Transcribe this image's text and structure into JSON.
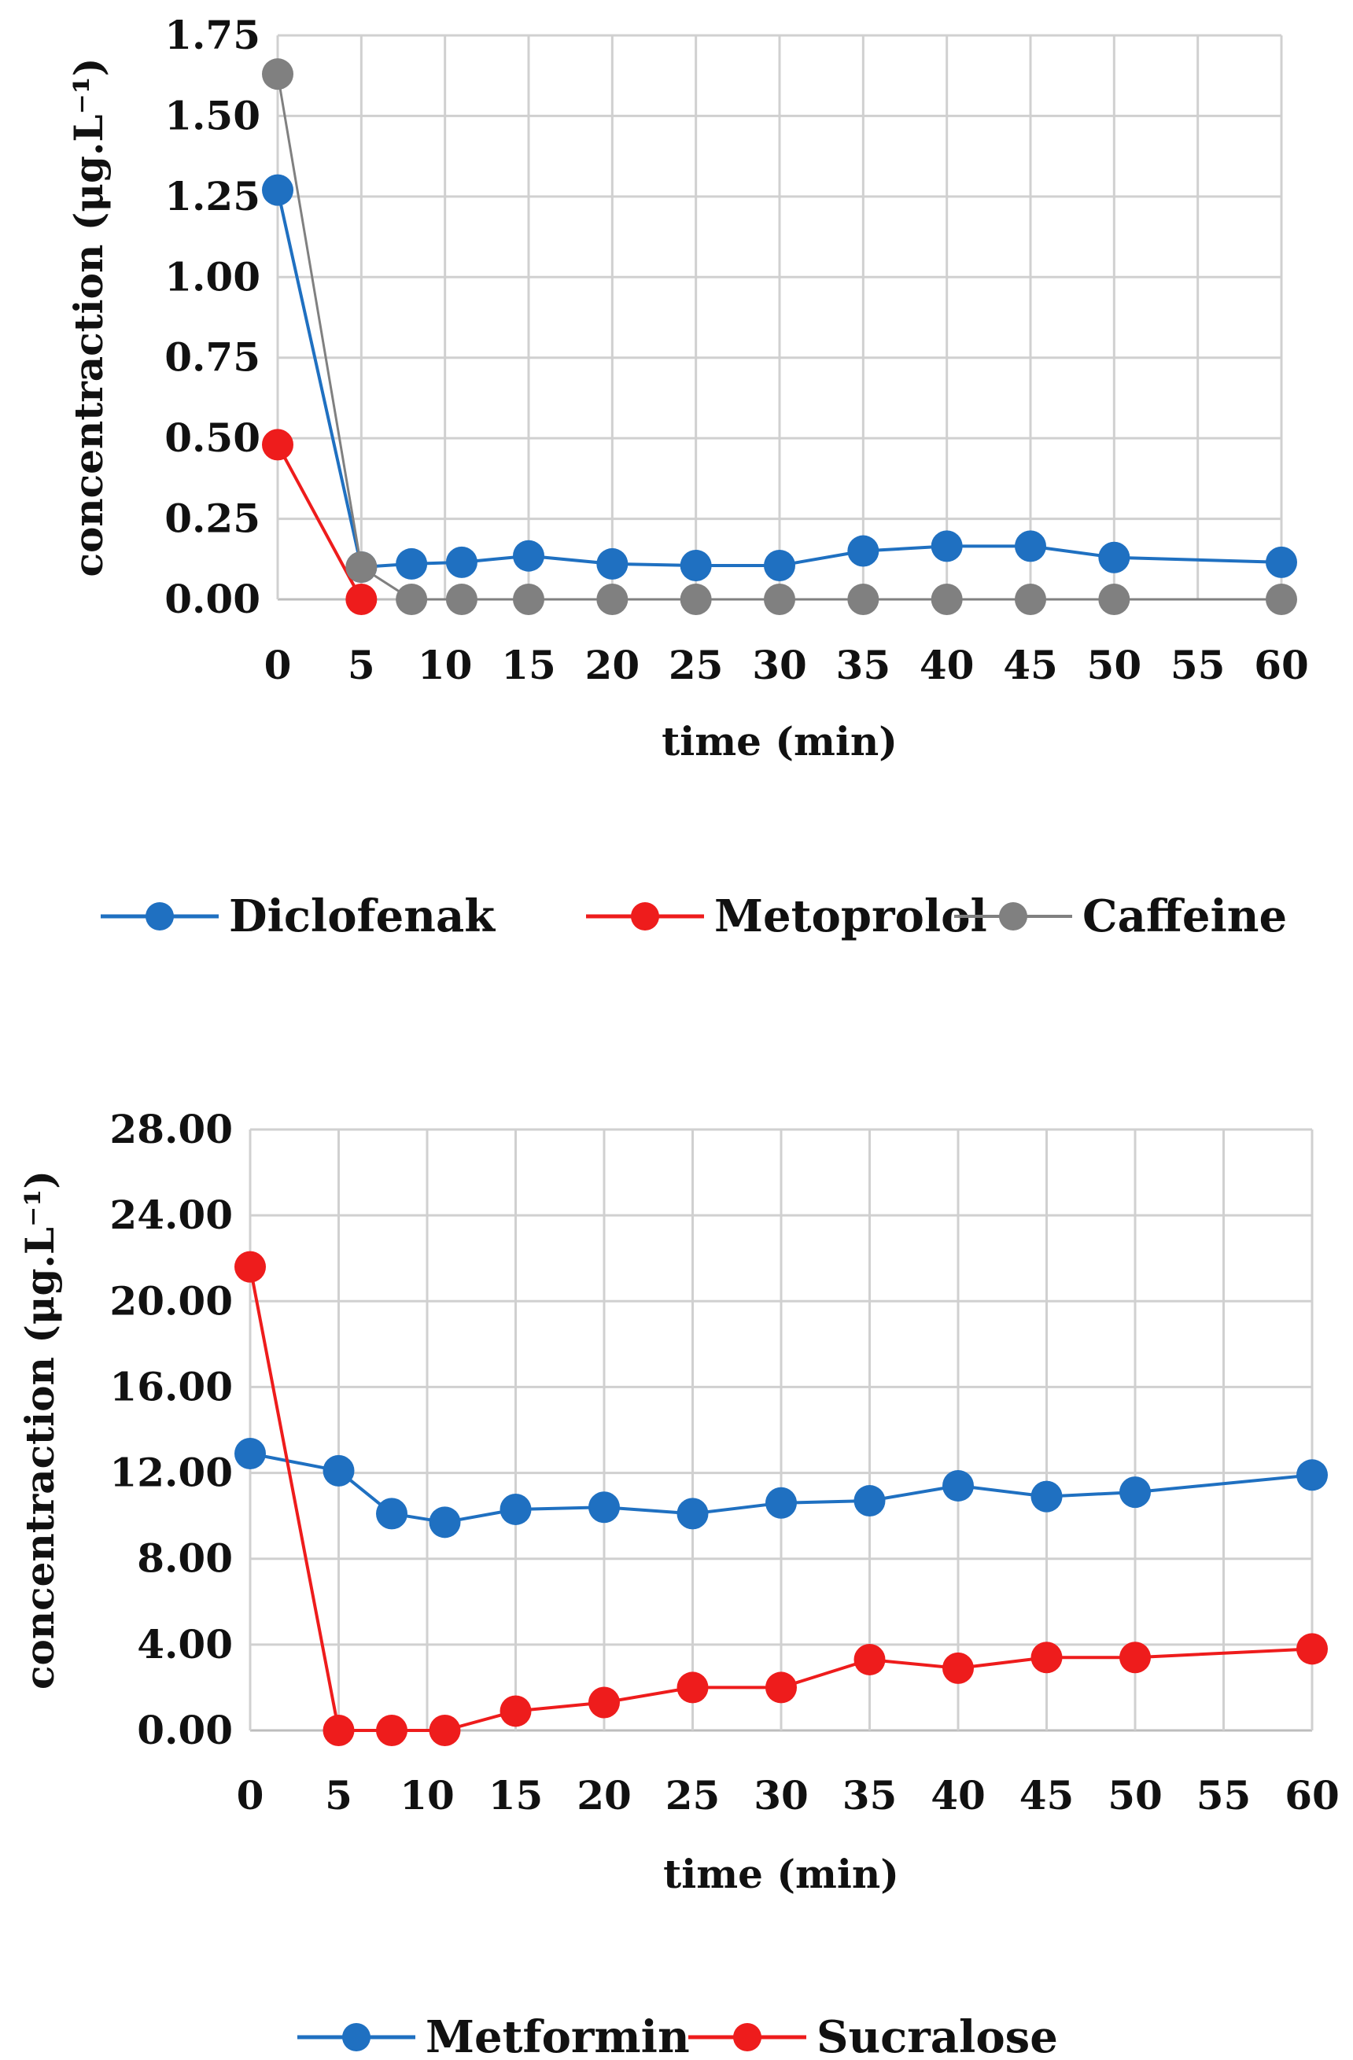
{
  "chart_data": [
    {
      "type": "line",
      "title": "",
      "xlabel": "time (min)",
      "ylabel": "concentraction (μg.L⁻¹)",
      "xlim": [
        0,
        60
      ],
      "ylim": [
        0,
        1.75
      ],
      "x_ticks": [
        0,
        5,
        10,
        15,
        20,
        25,
        30,
        35,
        40,
        45,
        50,
        55,
        60
      ],
      "x_tick_labels": [
        "0",
        "5",
        "10",
        "15",
        "20",
        "25",
        "30",
        "35",
        "40",
        "45",
        "50",
        "55",
        "60"
      ],
      "y_ticks": [
        0,
        0.25,
        0.5,
        0.75,
        1.0,
        1.25,
        1.5,
        1.75
      ],
      "y_tick_labels": [
        "0.00",
        "0.25",
        "0.50",
        "0.75",
        "1.00",
        "1.25",
        "1.50",
        "1.75"
      ],
      "grid": true,
      "legend_position": "bottom",
      "series": [
        {
          "name": "Diclofenak",
          "color": "#1f70c1",
          "line_width": 4,
          "x": [
            0,
            5,
            8,
            11,
            15,
            20,
            25,
            30,
            35,
            40,
            45,
            50,
            60
          ],
          "values": [
            1.27,
            0.1,
            0.11,
            0.115,
            0.135,
            0.11,
            0.105,
            0.105,
            0.15,
            0.165,
            0.165,
            0.13,
            0.115
          ]
        },
        {
          "name": "Metoprolol",
          "color": "#ee1c1c",
          "line_width": 4,
          "x": [
            0,
            5
          ],
          "values": [
            0.48,
            0.0
          ]
        },
        {
          "name": "Caffeine",
          "color": "#808080",
          "line_width": 3,
          "x": [
            0,
            5,
            8,
            11,
            15,
            20,
            25,
            30,
            35,
            40,
            45,
            50,
            60
          ],
          "values": [
            1.63,
            0.1,
            0.0,
            0.0,
            0.0,
            0.0,
            0.0,
            0.0,
            0.0,
            0.0,
            0.0,
            0.0,
            0.0
          ]
        }
      ]
    },
    {
      "type": "line",
      "title": "",
      "xlabel": "time (min)",
      "ylabel": "concentraction (μg.L⁻¹)",
      "xlim": [
        0,
        60
      ],
      "ylim": [
        0,
        28
      ],
      "x_ticks": [
        0,
        5,
        10,
        15,
        20,
        25,
        30,
        35,
        40,
        45,
        50,
        55,
        60
      ],
      "x_tick_labels": [
        "0",
        "5",
        "10",
        "15",
        "20",
        "25",
        "30",
        "35",
        "40",
        "45",
        "50",
        "55",
        "60"
      ],
      "y_ticks": [
        0,
        4,
        8,
        12,
        16,
        20,
        24,
        28
      ],
      "y_tick_labels": [
        "0.00",
        "4.00",
        "8.00",
        "12.00",
        "16.00",
        "20.00",
        "24.00",
        "28.00"
      ],
      "grid": true,
      "legend_position": "bottom",
      "series": [
        {
          "name": "Metformin",
          "color": "#1f70c1",
          "line_width": 4,
          "x": [
            0,
            5,
            8,
            11,
            15,
            20,
            25,
            30,
            35,
            40,
            45,
            50,
            60
          ],
          "values": [
            12.9,
            12.1,
            10.1,
            9.7,
            10.3,
            10.4,
            10.1,
            10.6,
            10.7,
            11.4,
            10.9,
            11.1,
            11.9
          ]
        },
        {
          "name": "Sucralose",
          "color": "#ee1c1c",
          "line_width": 4,
          "x": [
            0,
            5,
            8,
            11,
            15,
            20,
            25,
            30,
            35,
            40,
            45,
            50,
            60
          ],
          "values": [
            21.6,
            0.0,
            0.0,
            0.0,
            0.9,
            1.3,
            2.0,
            2.0,
            3.3,
            2.9,
            3.4,
            3.4,
            3.8
          ]
        }
      ]
    }
  ]
}
